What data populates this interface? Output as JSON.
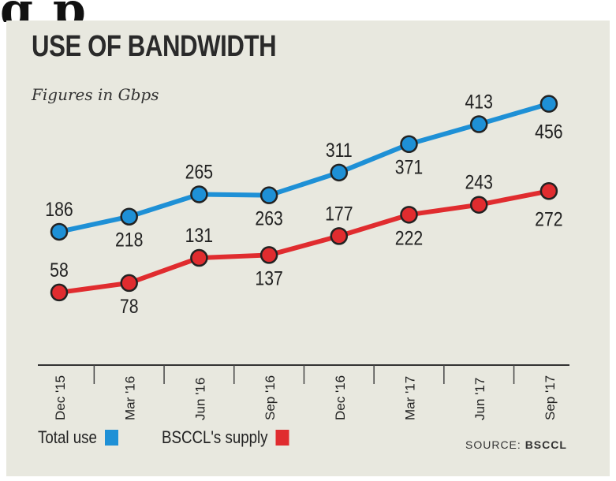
{
  "clipped_heading": "g                    p",
  "chart_data": {
    "type": "line",
    "title": "USE OF BANDWIDTH",
    "subtitle": "Figures in Gbps",
    "categories": [
      "Dec '15",
      "Mar '16",
      "Jun '16",
      "Sep '16",
      "Dec '16",
      "Mar '17",
      "Jun '17",
      "Sep '17"
    ],
    "series": [
      {
        "name": "Total use",
        "color": "#1e90d6",
        "values": [
          186,
          218,
          265,
          263,
          311,
          371,
          413,
          456
        ]
      },
      {
        "name": "BSCCL's supply",
        "color": "#e02c2f",
        "values": [
          58,
          78,
          131,
          137,
          177,
          222,
          243,
          272
        ]
      }
    ],
    "ylim": [
      0,
      500
    ],
    "grid": false,
    "legend_position": "bottom-left"
  },
  "source": {
    "label": "SOURCE:",
    "name": "BSCCL"
  }
}
